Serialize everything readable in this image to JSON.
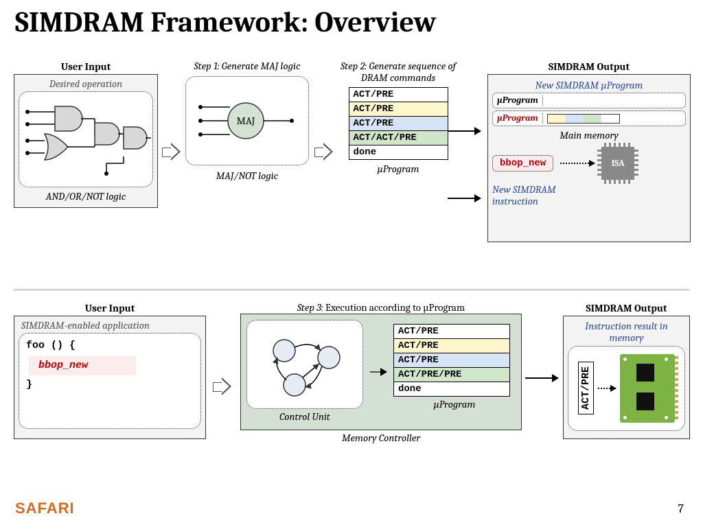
{
  "title": "SIMDRAM Framework: Overview",
  "footer": {
    "logo": "SAFARI",
    "page": "7"
  },
  "labels": {
    "user_input": "User Input",
    "simdram_output": "SIMDRAM Output",
    "desired_op": "Desired operation",
    "and_or_not": "AND/OR/NOT logic",
    "step1": "Step 1: Generate MAJ logic",
    "maj": "MAJ",
    "maj_not": "MAJ/NOT logic",
    "step2": "Step 2: Generate sequence of DRAM commands",
    "uprogram": "µProgram",
    "new_uprog": "New SIMDRAM µProgram",
    "uprog_bold": "µProgram",
    "uprog_red": "µProgram",
    "main_memory": "Main memory",
    "bbop_new": "bbop_new",
    "isa": "ISA",
    "new_instr": "New SIMDRAM instruction",
    "simd_app": "SIMDRAM-enabled application",
    "step3_prefix": "Step 3: ",
    "step3_rest": "Execution according to µProgram",
    "control_unit": "Control Unit",
    "mem_ctrl": "Memory Controller",
    "instr_result": "Instruction result in memory",
    "act_pre": "ACT/PRE"
  },
  "cmd_rows_top": [
    {
      "text": "ACT/PRE",
      "bg": "#ffffff"
    },
    {
      "text": "ACT/PRE",
      "bg": "#fff6cc"
    },
    {
      "text": "ACT/PRE",
      "bg": "#d6e4f5"
    },
    {
      "text": "ACT/ACT/PRE",
      "bg": "#cfe6c9"
    },
    {
      "text": "done",
      "bg": "#ffffff"
    }
  ],
  "cmd_rows_bot": [
    {
      "text": "ACT/PRE",
      "bg": "#ffffff"
    },
    {
      "text": "ACT/PRE",
      "bg": "#fff6cc"
    },
    {
      "text": "ACT/PRE",
      "bg": "#d6e4f5"
    },
    {
      "text": "ACT/PRE/PRE",
      "bg": "#cfe6c9"
    },
    {
      "text": "done",
      "bg": "#ffffff"
    }
  ],
  "colorbar_top": [
    {
      "bg": "#fff6cc",
      "w": 26
    },
    {
      "bg": "#d6e4f5",
      "w": 26
    },
    {
      "bg": "#cfe6c9",
      "w": 26
    },
    {
      "bg": "#ffffff",
      "w": 26
    }
  ],
  "code": {
    "l1": "foo () {",
    "l2": "bbop_new",
    "l3": "}"
  },
  "colors": {
    "panel_bg": "#f3f3f3",
    "accent_blue": "#2b4fa8",
    "accent_red": "#c00000",
    "maj_fill": "#d3e2d3",
    "control_bg": "#d5e0d5"
  }
}
